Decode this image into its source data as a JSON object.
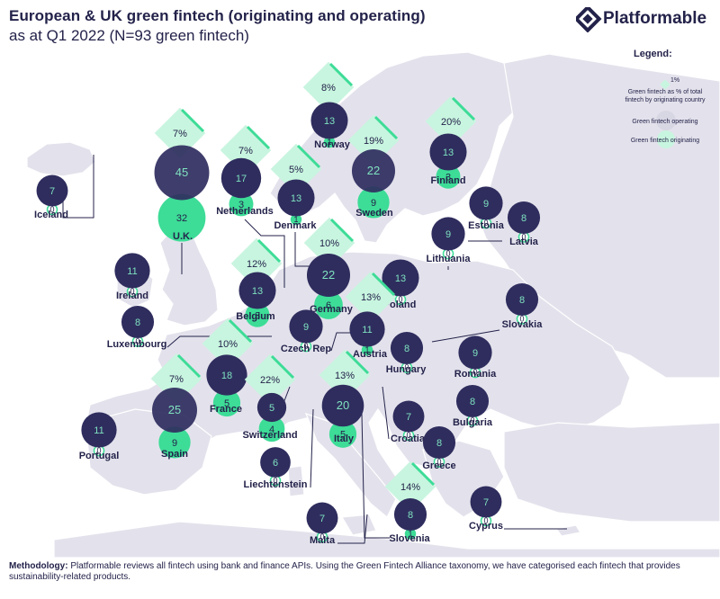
{
  "header": {
    "title": "European & UK green fintech (originating and operating)",
    "subtitle": "as at Q1 2022 (N=93 green fintech)"
  },
  "brand": {
    "name": "Platformable"
  },
  "legend": {
    "title": "Legend:",
    "pct_example": "1%",
    "pct_desc_line1": "Green fintech as % of total",
    "pct_desc_line2": "fintech by originating country",
    "operating": "Green fintech operating",
    "originating": "Green fintech originating"
  },
  "colors": {
    "operating": "#2f2d5e",
    "originating": "#3ddc97",
    "diamond": "#c8f5df",
    "diamond_edge": "#3ddc97",
    "land": "#e3e2ec",
    "background": "#ffffff",
    "text": "#23224a"
  },
  "countries": [
    {
      "name": "Iceland",
      "operating": 7,
      "originating": 0
    },
    {
      "name": "U.K.",
      "operating": 45,
      "originating": 32,
      "pct": "7%"
    },
    {
      "name": "Netherlands",
      "operating": 17,
      "originating": 3,
      "pct": "7%"
    },
    {
      "name": "Norway",
      "operating": 13,
      "originating": 1,
      "pct": "8%"
    },
    {
      "name": "Denmark",
      "operating": 13,
      "originating": 1,
      "pct": "5%"
    },
    {
      "name": "Sweden",
      "operating": 22,
      "originating": 9,
      "pct": "19%"
    },
    {
      "name": "Finland",
      "operating": 13,
      "originating": 3,
      "pct": "20%"
    },
    {
      "name": "Estonia",
      "operating": 9,
      "originating": 0
    },
    {
      "name": "Latvia",
      "operating": 8,
      "originating": 0
    },
    {
      "name": "Lithuania",
      "operating": 9,
      "originating": 0
    },
    {
      "name": "Ireland",
      "operating": 11,
      "originating": 0
    },
    {
      "name": "Belgium",
      "operating": 13,
      "originating": 3,
      "pct": "12%"
    },
    {
      "name": "Germany",
      "operating": 22,
      "originating": 6,
      "pct": "10%"
    },
    {
      "name": "Poland",
      "operating": 13,
      "originating": 0
    },
    {
      "name": "Slovakia",
      "operating": 8,
      "originating": 0
    },
    {
      "name": "Luxembourg",
      "operating": 8,
      "originating": 0
    },
    {
      "name": "Czech Rep",
      "operating": 9,
      "originating": 0
    },
    {
      "name": "Austria",
      "operating": 11,
      "originating": 1,
      "pct": "13%"
    },
    {
      "name": "Hungary",
      "operating": 8,
      "originating": 0
    },
    {
      "name": "Romania",
      "operating": 9,
      "originating": 0
    },
    {
      "name": "France",
      "operating": 18,
      "originating": 5,
      "pct": "10%"
    },
    {
      "name": "Switzerland",
      "operating": 5,
      "originating": 4,
      "pct": "22%"
    },
    {
      "name": "Italy",
      "operating": 20,
      "originating": 5,
      "pct": "13%"
    },
    {
      "name": "Croatia",
      "operating": 7,
      "originating": 0
    },
    {
      "name": "Bulgaria",
      "operating": 8,
      "originating": 0
    },
    {
      "name": "Portugal",
      "operating": 11,
      "originating": 0
    },
    {
      "name": "Spain",
      "operating": 25,
      "originating": 9,
      "pct": "7%"
    },
    {
      "name": "Liechtenstein",
      "operating": 6,
      "originating": 0
    },
    {
      "name": "Greece",
      "operating": 8,
      "originating": 0
    },
    {
      "name": "Slovenia",
      "operating": 8,
      "originating": 1,
      "pct": "14%"
    },
    {
      "name": "Malta",
      "operating": 7,
      "originating": 0
    },
    {
      "name": "Cyprus",
      "operating": 7,
      "originating": 0
    }
  ],
  "methodology": {
    "label": "Methodology:",
    "text": "Platformable reviews all fintech using bank and finance APIs. Using the Green Fintech Alliance taxonomy, we have categorised each fintech that provides sustainability-related products."
  }
}
